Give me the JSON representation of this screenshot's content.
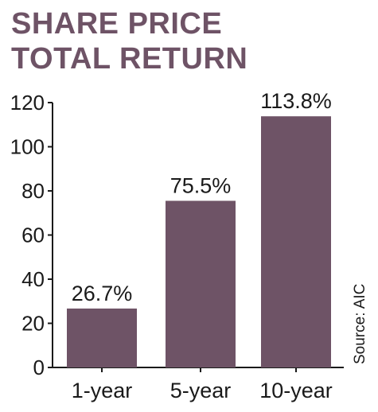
{
  "chart_data": {
    "type": "bar",
    "title": [
      "SHARE PRICE",
      "TOTAL RETURN"
    ],
    "categories": [
      "1-year",
      "5-year",
      "10-year"
    ],
    "values": [
      26.7,
      75.5,
      113.8
    ],
    "data_labels": [
      "26.7%",
      "75.5%",
      "113.8%"
    ],
    "ylim": [
      0,
      120
    ],
    "yticks": [
      0,
      20,
      40,
      60,
      80,
      100,
      120
    ],
    "source": "Source: AIC",
    "bar_color": "#6e5366",
    "title_color": "#6e5366",
    "grid": false
  }
}
